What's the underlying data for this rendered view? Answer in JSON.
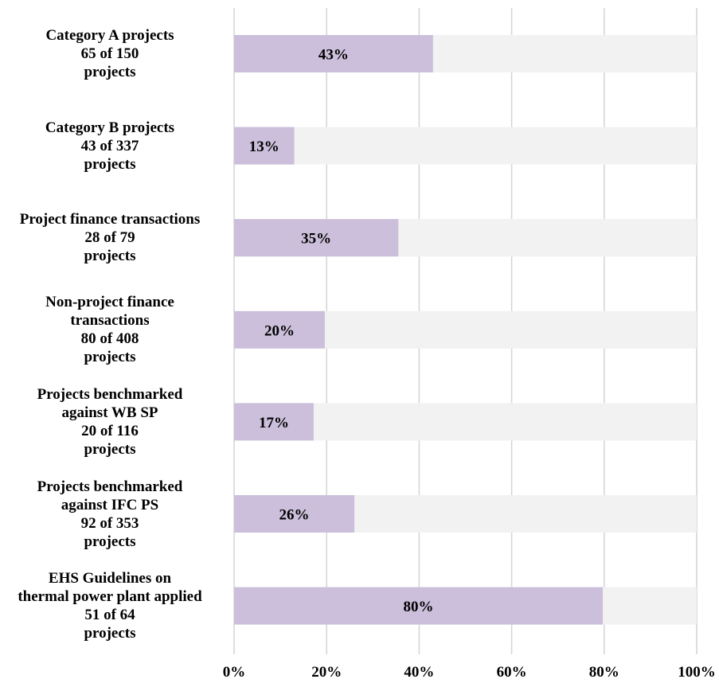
{
  "chart_data": {
    "type": "bar",
    "orientation": "horizontal",
    "stacked_to": 100,
    "categories": [
      {
        "lines": [
          "Category A projects",
          "65 of 150",
          "projects"
        ],
        "value": 43,
        "label": "43%"
      },
      {
        "lines": [
          "Category B projects",
          "43 of 337",
          "projects"
        ],
        "value": 13,
        "label": "13%"
      },
      {
        "lines": [
          "Project finance transactions",
          "28 of 79",
          "projects"
        ],
        "value": 35.5,
        "label": "35%"
      },
      {
        "lines": [
          "Non-project finance",
          "transactions",
          "80 of 408",
          "projects"
        ],
        "value": 19.6,
        "label": "20%"
      },
      {
        "lines": [
          "Projects benchmarked",
          "against WB SP",
          "20 of 116",
          "projects"
        ],
        "value": 17.2,
        "label": "17%"
      },
      {
        "lines": [
          "Projects benchmarked",
          "against IFC PS",
          "92 of 353",
          "projects"
        ],
        "value": 26,
        "label": "26%"
      },
      {
        "lines": [
          "EHS Guidelines on",
          "thermal power plant applied",
          "51 of 64",
          "projects"
        ],
        "value": 79.7,
        "label": "80%"
      }
    ],
    "xticks": [
      "0%",
      "20%",
      "40%",
      "60%",
      "80%",
      "100%"
    ],
    "xlim": [
      0,
      100
    ],
    "grid": true,
    "colors": {
      "bar": "#cbbfdb",
      "background_bar": "#f2f2f2",
      "grid": "#d4d4d4"
    }
  }
}
